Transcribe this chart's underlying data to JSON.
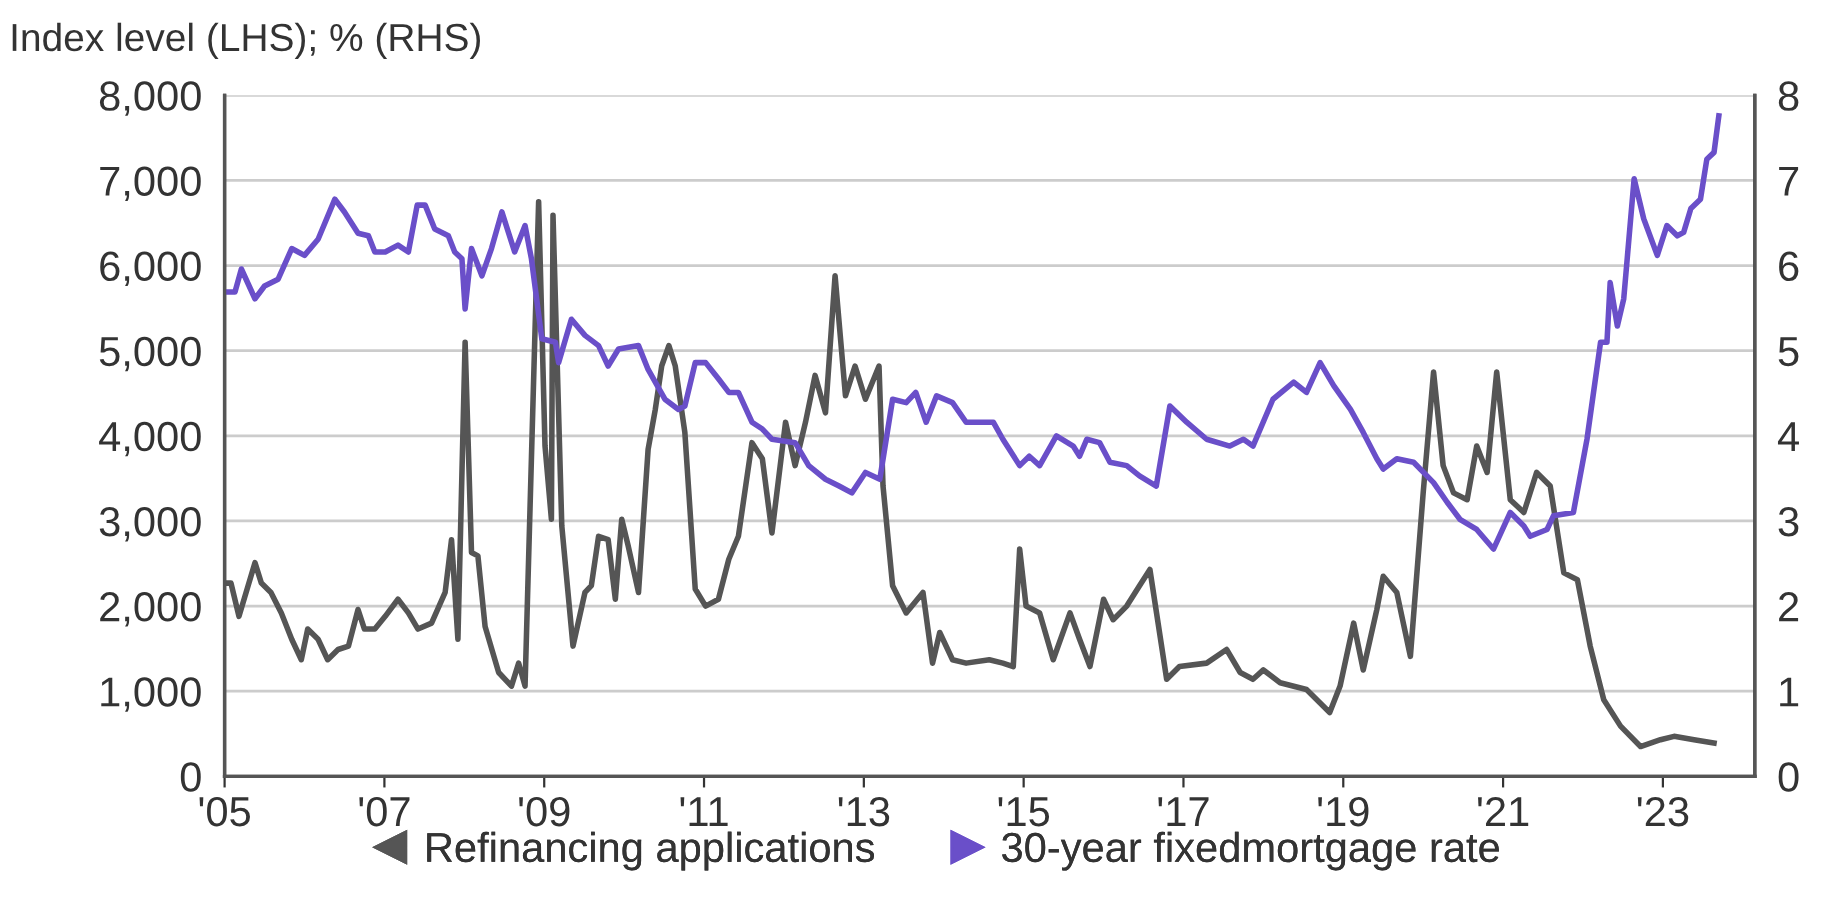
{
  "chart_data": {
    "type": "line",
    "title": "Index level (LHS); % (RHS)",
    "xlim": [
      2005,
      2024.15
    ],
    "xticks": [
      {
        "value": 2005,
        "label": "'05"
      },
      {
        "value": 2007,
        "label": "'07"
      },
      {
        "value": 2009,
        "label": "'09"
      },
      {
        "value": 2011,
        "label": "'11"
      },
      {
        "value": 2013,
        "label": "'13"
      },
      {
        "value": 2015,
        "label": "'15"
      },
      {
        "value": 2017,
        "label": "'17"
      },
      {
        "value": 2019,
        "label": "'19"
      },
      {
        "value": 2021,
        "label": "'21"
      },
      {
        "value": 2023,
        "label": "'23"
      }
    ],
    "ylim": [
      0,
      8000
    ],
    "yticks": [
      0,
      {
        "value": 1000,
        "label": "1,000"
      },
      {
        "value": 2000,
        "label": "2,000"
      },
      {
        "value": 3000,
        "label": "3,000"
      },
      {
        "value": 4000,
        "label": "4,000"
      },
      {
        "value": 5000,
        "label": "5,000"
      },
      {
        "value": 6000,
        "label": "6,000"
      },
      {
        "value": 7000,
        "label": "7,000"
      },
      {
        "value": 8000,
        "label": "8,000"
      }
    ],
    "y2lim": [
      0,
      8
    ],
    "y2ticks": [
      0,
      1,
      2,
      3,
      4,
      5,
      6,
      7,
      8
    ],
    "grid": "y",
    "legend": "bottom",
    "marker": "none",
    "line_style": "solid",
    "series": [
      {
        "name": "Refinancing applications",
        "color": "#555555",
        "x": [
          2005.0,
          2005.08,
          2005.18,
          2005.38,
          2005.46,
          2005.58,
          2005.71,
          2005.84,
          2005.96,
          2006.04,
          2006.17,
          2006.29,
          2006.42,
          2006.55,
          2006.67,
          2006.75,
          2006.88,
          2007.01,
          2007.17,
          2007.3,
          2007.42,
          2007.59,
          2007.76,
          2007.84,
          2007.92,
          2008.01,
          2008.09,
          2008.17,
          2008.26,
          2008.43,
          2008.59,
          2008.68,
          2008.76,
          2008.93,
          2009.01,
          2009.09,
          2009.11,
          2009.22,
          2009.36,
          2009.51,
          2009.59,
          2009.68,
          2009.8,
          2009.89,
          2009.97,
          2010.05,
          2010.18,
          2010.3,
          2010.39,
          2010.47,
          2010.56,
          2010.64,
          2010.76,
          2010.89,
          2011.02,
          2011.18,
          2011.31,
          2011.43,
          2011.6,
          2011.73,
          2011.85,
          2012.02,
          2012.14,
          2012.27,
          2012.39,
          2012.52,
          2012.64,
          2012.77,
          2012.89,
          2013.02,
          2013.19,
          2013.24,
          2013.36,
          2013.53,
          2013.74,
          2013.86,
          2013.95,
          2014.11,
          2014.28,
          2014.57,
          2014.74,
          2014.87,
          2014.95,
          2015.03,
          2015.2,
          2015.37,
          2015.58,
          2015.7,
          2015.83,
          2016.0,
          2016.12,
          2016.29,
          2016.45,
          2016.58,
          2016.79,
          2016.95,
          2017.29,
          2017.54,
          2017.71,
          2017.87,
          2018.0,
          2018.21,
          2018.54,
          2018.83,
          2018.96,
          2019.13,
          2019.25,
          2019.42,
          2019.5,
          2019.67,
          2019.84,
          2020.0,
          2020.13,
          2020.25,
          2020.38,
          2020.55,
          2020.67,
          2020.8,
          2020.92,
          2021.09,
          2021.26,
          2021.42,
          2021.59,
          2021.76,
          2021.93,
          2022.09,
          2022.26,
          2022.47,
          2022.72,
          2022.97,
          2023.14,
          2023.39,
          2023.64
        ],
        "values": [
          2270,
          2270,
          1880,
          2510,
          2270,
          2160,
          1920,
          1610,
          1370,
          1730,
          1610,
          1370,
          1490,
          1530,
          1960,
          1730,
          1730,
          1880,
          2080,
          1920,
          1730,
          1800,
          2160,
          2780,
          1610,
          5100,
          2630,
          2590,
          1760,
          1220,
          1060,
          1330,
          1060,
          6750,
          3880,
          3020,
          6590,
          2940,
          1530,
          2160,
          2240,
          2820,
          2780,
          2080,
          3020,
          2710,
          2160,
          3840,
          4310,
          4820,
          5060,
          4820,
          4040,
          2200,
          2000,
          2080,
          2550,
          2820,
          3920,
          3730,
          2860,
          4160,
          3650,
          4160,
          4710,
          4270,
          5880,
          4470,
          4820,
          4430,
          4820,
          3410,
          2240,
          1920,
          2160,
          1330,
          1690,
          1370,
          1330,
          1370,
          1330,
          1290,
          2670,
          2000,
          1920,
          1370,
          1920,
          1610,
          1290,
          2080,
          1840,
          2000,
          2240,
          2430,
          1140,
          1290,
          1330,
          1490,
          1220,
          1140,
          1250,
          1100,
          1020,
          750,
          1060,
          1800,
          1250,
          1960,
          2350,
          2160,
          1410,
          3330,
          4750,
          3650,
          3330,
          3250,
          3880,
          3570,
          4750,
          3250,
          3100,
          3570,
          3410,
          2390,
          2310,
          1530,
          900,
          590,
          350,
          430,
          470,
          430,
          390
        ]
      },
      {
        "name": "30-year fixedmortgage rate",
        "color": "#6a4fc9",
        "axis": "y2",
        "x": [
          2005.0,
          2005.13,
          2005.21,
          2005.38,
          2005.5,
          2005.67,
          2005.84,
          2006.0,
          2006.17,
          2006.38,
          2006.5,
          2006.67,
          2006.8,
          2006.88,
          2007.01,
          2007.17,
          2007.3,
          2007.41,
          2007.51,
          2007.63,
          2007.8,
          2007.88,
          2007.97,
          2008.01,
          2008.09,
          2008.22,
          2008.34,
          2008.47,
          2008.63,
          2008.76,
          2008.84,
          2008.97,
          2009.14,
          2009.18,
          2009.34,
          2009.51,
          2009.68,
          2009.8,
          2009.93,
          2010.18,
          2010.3,
          2010.51,
          2010.68,
          2010.76,
          2010.89,
          2011.02,
          2011.18,
          2011.31,
          2011.43,
          2011.6,
          2011.73,
          2011.85,
          2012.14,
          2012.31,
          2012.52,
          2012.69,
          2012.85,
          2013.02,
          2013.2,
          2013.36,
          2013.53,
          2013.65,
          2013.78,
          2013.91,
          2014.11,
          2014.28,
          2014.62,
          2014.74,
          2014.95,
          2015.07,
          2015.2,
          2015.41,
          2015.62,
          2015.7,
          2015.79,
          2015.95,
          2016.08,
          2016.29,
          2016.45,
          2016.66,
          2016.83,
          2017.04,
          2017.29,
          2017.58,
          2017.75,
          2017.87,
          2018.12,
          2018.38,
          2018.54,
          2018.71,
          2018.88,
          2019.09,
          2019.25,
          2019.42,
          2019.5,
          2019.67,
          2019.88,
          2020.13,
          2020.3,
          2020.46,
          2020.67,
          2020.88,
          2021.09,
          2021.26,
          2021.34,
          2021.55,
          2021.63,
          2021.88,
          2022.05,
          2022.22,
          2022.3,
          2022.34,
          2022.43,
          2022.51,
          2022.64,
          2022.76,
          2022.93,
          2023.05,
          2023.18,
          2023.26,
          2023.35,
          2023.47,
          2023.55,
          2023.64,
          2023.7
        ],
        "values": [
          5.69,
          5.69,
          5.96,
          5.61,
          5.76,
          5.84,
          6.2,
          6.12,
          6.31,
          6.78,
          6.63,
          6.38,
          6.35,
          6.16,
          6.16,
          6.24,
          6.16,
          6.71,
          6.71,
          6.43,
          6.35,
          6.16,
          6.08,
          5.49,
          6.2,
          5.88,
          6.2,
          6.63,
          6.16,
          6.47,
          6.08,
          5.14,
          5.1,
          4.86,
          5.37,
          5.18,
          5.06,
          4.82,
          5.02,
          5.06,
          4.78,
          4.43,
          4.31,
          4.35,
          4.86,
          4.86,
          4.67,
          4.51,
          4.51,
          4.16,
          4.08,
          3.96,
          3.92,
          3.65,
          3.49,
          3.41,
          3.33,
          3.57,
          3.49,
          4.43,
          4.39,
          4.51,
          4.16,
          4.47,
          4.39,
          4.16,
          4.16,
          3.96,
          3.65,
          3.76,
          3.65,
          4.0,
          3.88,
          3.76,
          3.96,
          3.92,
          3.69,
          3.65,
          3.53,
          3.41,
          4.35,
          4.16,
          3.96,
          3.88,
          3.96,
          3.88,
          4.43,
          4.63,
          4.51,
          4.86,
          4.59,
          4.31,
          4.04,
          3.73,
          3.61,
          3.73,
          3.69,
          3.45,
          3.22,
          3.02,
          2.9,
          2.67,
          3.1,
          2.94,
          2.82,
          2.9,
          3.06,
          3.1,
          3.96,
          5.1,
          5.1,
          5.8,
          5.29,
          5.61,
          7.02,
          6.55,
          6.12,
          6.47,
          6.35,
          6.39,
          6.67,
          6.78,
          7.25,
          7.33,
          7.76
        ]
      }
    ]
  }
}
